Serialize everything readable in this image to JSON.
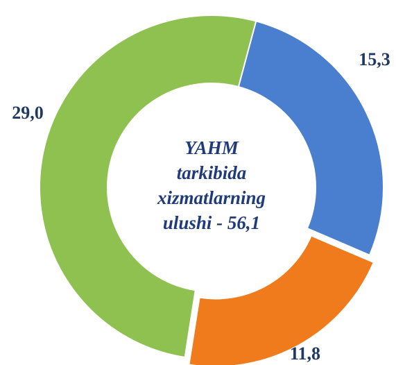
{
  "chart_data": {
    "type": "donut",
    "center_text": [
      "YAHM",
      "tarkibida",
      "xizmatlarning",
      "ulushi - 56,1"
    ],
    "values": [
      15.3,
      11.8,
      29.0
    ],
    "value_labels": [
      "15,3",
      "11,8",
      "29,0"
    ],
    "colors": [
      "#4a7fd0",
      "#f07b1c",
      "#8fc150"
    ]
  }
}
